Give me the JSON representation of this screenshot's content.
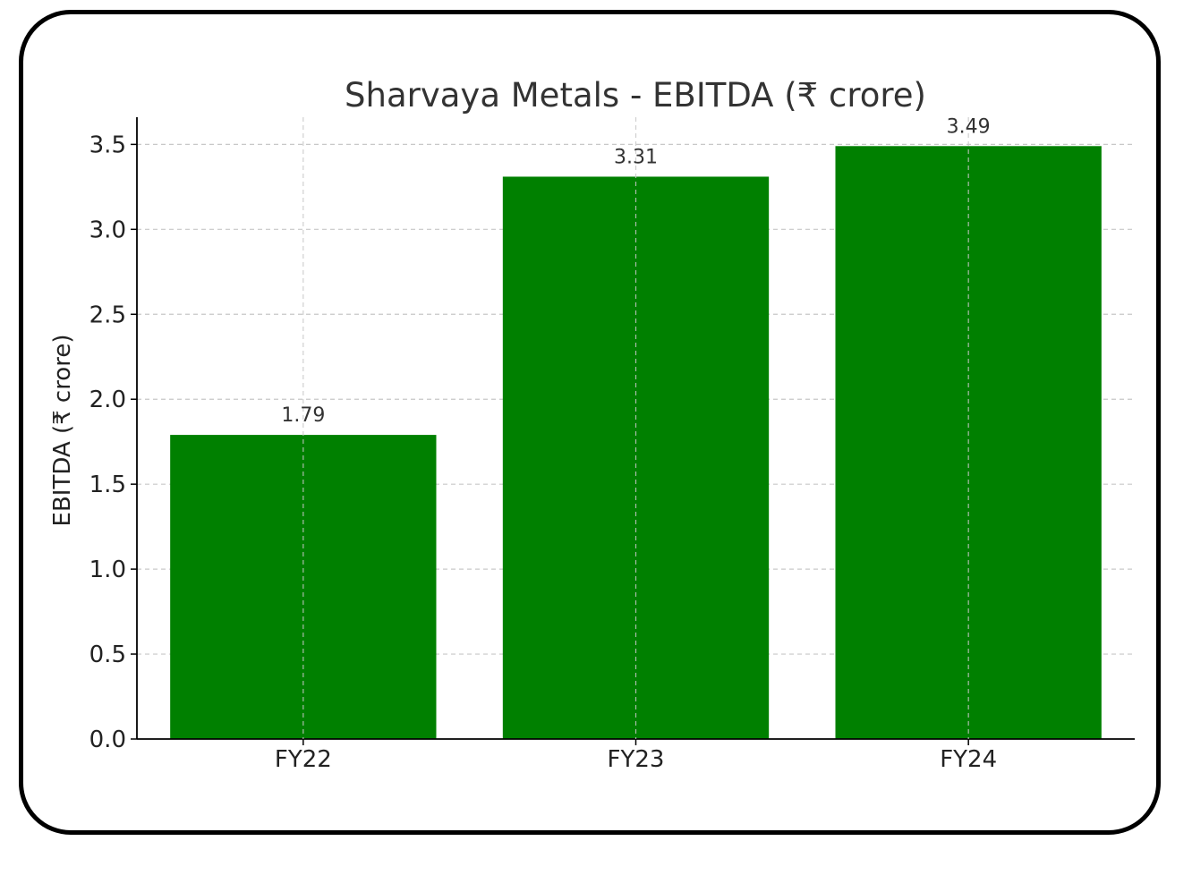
{
  "chart_data": {
    "type": "bar",
    "title": "Sharvaya Metals - EBITDA (₹ crore)",
    "xlabel": "",
    "ylabel": "EBITDA (₹ crore)",
    "categories": [
      "FY22",
      "FY23",
      "FY24"
    ],
    "values": [
      1.79,
      3.31,
      3.49
    ],
    "data_labels": [
      "1.79",
      "3.31",
      "3.49"
    ],
    "yticks": [
      "0.0",
      "0.5",
      "1.0",
      "1.5",
      "2.0",
      "2.5",
      "3.0",
      "3.5"
    ],
    "ylim": [
      0,
      3.66
    ],
    "grid": true,
    "legend": "none",
    "colors": {
      "bar": "#008000",
      "text": "#333333",
      "axis": "#000000",
      "grid": "#c8c8c8",
      "frame": "#000000"
    }
  }
}
